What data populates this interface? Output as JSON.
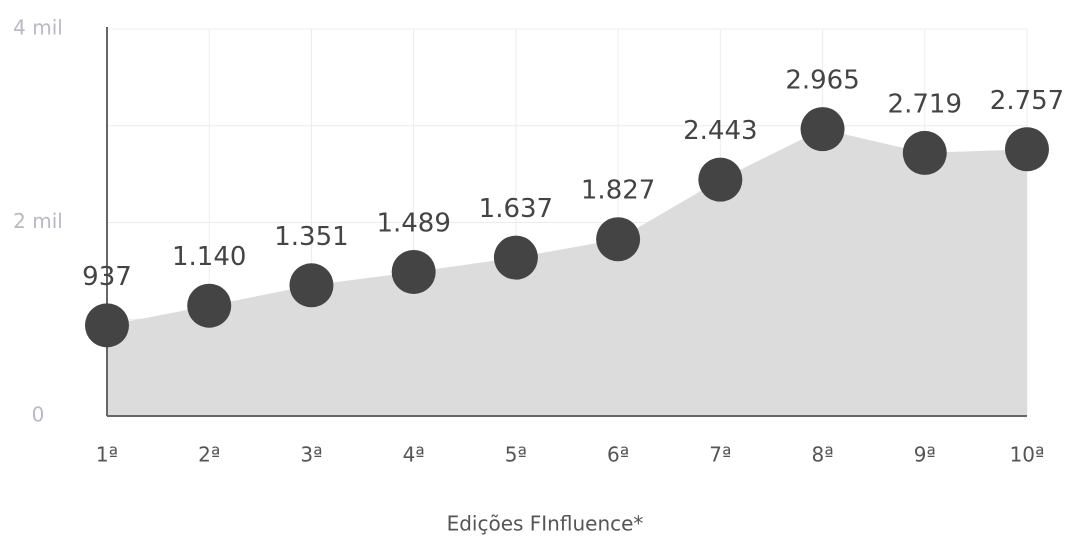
{
  "chart_data": {
    "type": "area",
    "x_label": "Edições FInfluence*",
    "categories": [
      "1ª",
      "2ª",
      "3ª",
      "4ª",
      "5ª",
      "6ª",
      "7ª",
      "8ª",
      "9ª",
      "10ª"
    ],
    "values": [
      937,
      1140,
      1351,
      1489,
      1637,
      1827,
      2443,
      2965,
      2719,
      2757
    ],
    "value_labels": [
      "937",
      "1.140",
      "1.351",
      "1.489",
      "1.637",
      "1.827",
      "2.443",
      "2.965",
      "2.719",
      "2.757"
    ],
    "color": "#444444",
    "fill": "#dcdcdc",
    "ylim": [
      0,
      4000
    ],
    "yticks": [
      0,
      {
        "value": 2000,
        "label": "2 mil"
      },
      {
        "value": 4000,
        "label": "4 mil"
      }
    ],
    "minor_yticks": [
      1000,
      3000
    ],
    "grid": true
  }
}
